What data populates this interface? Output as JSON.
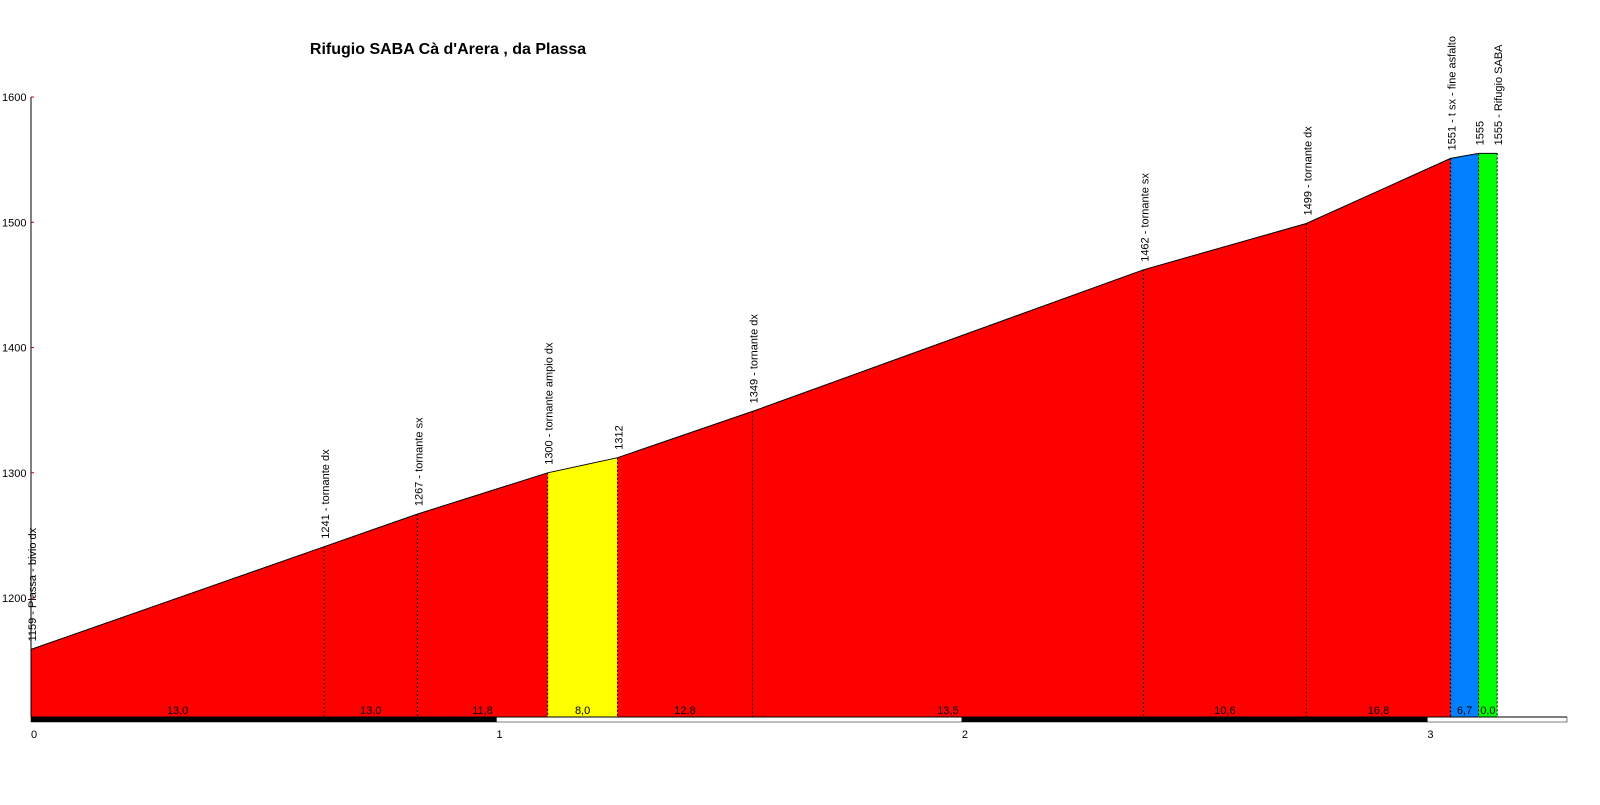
{
  "chart_data": {
    "type": "area",
    "title": "Rifugio SABA Cà d'Arera , da Plassa",
    "xlabel": "",
    "ylabel": "",
    "xlim": [
      0,
      3.3
    ],
    "ylim": [
      1105,
      1600
    ],
    "x_ticks": [
      {
        "value": 0,
        "label": "0"
      },
      {
        "value": 1,
        "label": "1"
      },
      {
        "value": 2,
        "label": "2"
      },
      {
        "value": 3,
        "label": "3"
      }
    ],
    "y_ticks": [
      {
        "value": 1200,
        "label": "1200"
      },
      {
        "value": 1300,
        "label": "1300"
      },
      {
        "value": 1400,
        "label": "1400"
      },
      {
        "value": 1500,
        "label": "1500"
      },
      {
        "value": 1600,
        "label": "1600"
      }
    ],
    "profile": [
      {
        "x": 0.0,
        "y": 1159
      },
      {
        "x": 0.63,
        "y": 1241
      },
      {
        "x": 0.83,
        "y": 1267
      },
      {
        "x": 1.11,
        "y": 1300
      },
      {
        "x": 1.26,
        "y": 1312
      },
      {
        "x": 1.55,
        "y": 1349
      },
      {
        "x": 2.39,
        "y": 1462
      },
      {
        "x": 2.74,
        "y": 1499
      },
      {
        "x": 3.05,
        "y": 1551
      },
      {
        "x": 3.11,
        "y": 1555
      },
      {
        "x": 3.15,
        "y": 1555
      }
    ],
    "segments": [
      {
        "from": 0.0,
        "to": 0.63,
        "gradient_label": "13,0",
        "color": "#ff0000"
      },
      {
        "from": 0.63,
        "to": 0.83,
        "gradient_label": "13,0",
        "color": "#ff0000"
      },
      {
        "from": 0.83,
        "to": 1.11,
        "gradient_label": "11,8",
        "color": "#ff0000"
      },
      {
        "from": 1.11,
        "to": 1.26,
        "gradient_label": "8,0",
        "color": "#ffff00"
      },
      {
        "from": 1.26,
        "to": 1.55,
        "gradient_label": "12,8",
        "color": "#ff0000"
      },
      {
        "from": 1.55,
        "to": 2.39,
        "gradient_label": "13,5",
        "color": "#ff0000"
      },
      {
        "from": 2.39,
        "to": 2.74,
        "gradient_label": "10,6",
        "color": "#ff0000"
      },
      {
        "from": 2.74,
        "to": 3.05,
        "gradient_label": "16,8",
        "color": "#ff0000"
      },
      {
        "from": 3.05,
        "to": 3.11,
        "gradient_label": "6,7",
        "color": "#0080ff"
      },
      {
        "from": 3.11,
        "to": 3.15,
        "gradient_label": "0,0",
        "color": "#00ff00"
      }
    ],
    "annotations": [
      {
        "x": 0.0,
        "y": 1159,
        "label": "1159 - Plassa - bivio dx"
      },
      {
        "x": 0.63,
        "y": 1241,
        "label": "1241 - tornante dx"
      },
      {
        "x": 0.83,
        "y": 1267,
        "label": "1267 - tornante sx"
      },
      {
        "x": 1.11,
        "y": 1300,
        "label": "1300 - tornante ampio dx"
      },
      {
        "x": 1.26,
        "y": 1312,
        "label": "1312"
      },
      {
        "x": 1.55,
        "y": 1349,
        "label": "1349 - tornante dx"
      },
      {
        "x": 2.39,
        "y": 1462,
        "label": "1462 - tornante sx"
      },
      {
        "x": 2.74,
        "y": 1499,
        "label": "1499 - tornante dx"
      },
      {
        "x": 3.05,
        "y": 1551,
        "label": "1551 - t sx - fine asfalto"
      },
      {
        "x": 3.11,
        "y": 1555,
        "label": "1555"
      },
      {
        "x": 3.15,
        "y": 1555,
        "label": "1555 - Rifugio SABA"
      }
    ],
    "grid": false,
    "legend": "none"
  }
}
